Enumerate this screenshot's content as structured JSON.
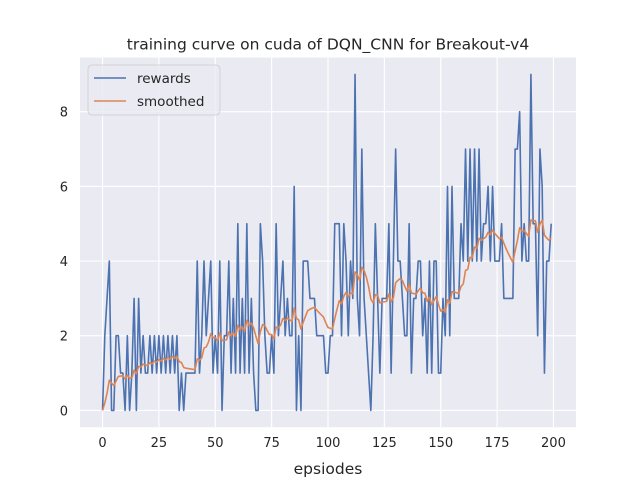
{
  "chart_data": {
    "type": "line",
    "title": "training curve on cuda of DQN_CNN for Breakout-v4",
    "xlabel": "epsiodes",
    "ylabel": "",
    "xlim": [
      -10,
      210
    ],
    "ylim": [
      -0.45,
      9.45
    ],
    "xticks": [
      0,
      25,
      50,
      75,
      100,
      125,
      150,
      175,
      200
    ],
    "yticks": [
      0,
      2,
      4,
      6,
      8
    ],
    "grid": true,
    "legend_position": "top-left",
    "series": [
      {
        "name": "rewards",
        "color": "#4c72b0",
        "values": [
          0,
          2,
          3,
          4,
          0,
          0,
          2,
          2,
          1,
          1,
          0,
          2,
          0,
          1,
          3,
          0,
          3,
          1,
          2,
          1,
          1,
          2,
          1,
          2,
          1,
          2,
          1,
          2,
          1,
          2,
          1,
          2,
          1,
          2,
          0,
          1,
          0,
          1,
          1,
          1,
          1,
          1,
          4,
          1,
          2,
          4,
          2,
          3,
          4,
          1,
          2,
          1,
          4,
          0,
          2,
          2,
          4,
          1,
          3,
          1,
          5,
          1,
          3,
          1,
          5,
          1,
          3,
          1,
          0,
          0,
          5,
          4,
          2,
          1,
          1,
          2,
          1,
          5,
          2,
          3,
          4,
          2,
          3,
          2,
          2,
          6,
          0,
          2,
          0,
          4,
          4,
          4,
          3,
          3,
          3,
          2,
          2,
          2,
          2,
          1,
          1,
          2,
          2,
          5,
          5,
          5,
          2,
          5,
          4,
          2,
          4,
          3,
          9,
          3,
          2,
          7,
          3,
          2,
          1,
          0,
          2,
          5,
          3,
          1,
          3,
          3,
          3,
          5,
          1,
          4,
          7,
          4,
          4,
          3,
          2,
          2,
          5,
          1,
          3,
          3,
          4,
          4,
          2,
          3,
          1,
          4,
          1,
          4,
          4,
          1,
          1,
          3,
          2,
          6,
          2,
          6,
          3,
          3,
          3,
          5,
          4,
          7,
          4,
          7,
          4,
          7,
          4,
          7,
          4,
          5,
          5,
          6,
          4,
          6,
          4,
          4,
          4,
          5,
          3,
          3,
          3,
          3,
          3,
          7,
          7,
          8,
          4,
          5,
          4,
          4,
          9,
          5,
          5,
          2,
          7,
          6,
          1,
          4,
          4,
          5
        ],
        "x_start": 0
      },
      {
        "name": "smoothed",
        "color": "#dd8452",
        "values": [
          0,
          0.2,
          0.46,
          0.81,
          0.73,
          0.66,
          0.79,
          0.91,
          0.92,
          0.93,
          0.84,
          0.95,
          0.86,
          0.87,
          1.08,
          0.98,
          1.18,
          1.16,
          1.24,
          1.22,
          1.2,
          1.28,
          1.25,
          1.32,
          1.29,
          1.36,
          1.32,
          1.39,
          1.35,
          1.42,
          1.37,
          1.44,
          1.39,
          1.45,
          1.31,
          1.28,
          1.15,
          1.13,
          1.12,
          1.11,
          1.1,
          1.09,
          1.38,
          1.34,
          1.41,
          1.67,
          1.7,
          1.83,
          2.05,
          1.95,
          1.95,
          1.86,
          2.07,
          1.87,
          1.88,
          1.89,
          2.1,
          1.99,
          2.09,
          1.98,
          2.28,
          2.16,
          2.24,
          2.12,
          2.41,
          2.27,
          2.34,
          2.21,
          1.99,
          1.79,
          2.11,
          2.3,
          2.27,
          2.14,
          2.03,
          2.03,
          1.92,
          2.23,
          2.21,
          2.29,
          2.46,
          2.41,
          2.47,
          2.43,
          2.38,
          2.74,
          2.47,
          2.42,
          2.18,
          2.36,
          2.52,
          2.67,
          2.71,
          2.74,
          2.76,
          2.69,
          2.62,
          2.56,
          2.5,
          2.35,
          2.22,
          2.2,
          2.18,
          2.46,
          2.71,
          2.94,
          2.85,
          3.06,
          3.16,
          3.04,
          3.14,
          3.12,
          3.71,
          3.64,
          3.48,
          3.83,
          3.75,
          3.57,
          3.32,
          2.98,
          2.88,
          3.1,
          3.09,
          2.88,
          2.9,
          2.91,
          2.92,
          3.12,
          2.91,
          3.02,
          3.42,
          3.48,
          3.53,
          3.48,
          3.33,
          3.2,
          3.38,
          3.14,
          3.13,
          3.11,
          3.2,
          3.28,
          3.15,
          3.14,
          2.92,
          3.03,
          2.83,
          2.94,
          3.05,
          2.84,
          2.66,
          2.7,
          2.63,
          2.96,
          2.87,
          3.18,
          3.17,
          3.15,
          3.13,
          3.32,
          3.39,
          3.75,
          3.78,
          4.1,
          4.09,
          4.38,
          4.34,
          4.61,
          4.55,
          4.6,
          4.64,
          4.77,
          4.7,
          4.83,
          4.74,
          4.67,
          4.6,
          4.64,
          4.48,
          4.33,
          4.2,
          4.08,
          3.97,
          4.27,
          4.55,
          4.89,
          4.8,
          4.82,
          4.74,
          4.66,
          5.1,
          5.09,
          5.08,
          4.77,
          4.99,
          5.1,
          4.69,
          4.62,
          4.56,
          4.6
        ]
      }
    ]
  }
}
